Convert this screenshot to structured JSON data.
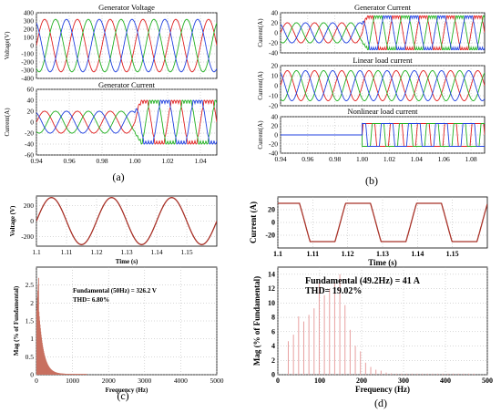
{
  "chart_data": [
    {
      "id": "a-top",
      "type": "line",
      "title": "Generator Voltage",
      "xlabel": "",
      "ylabel": "Voltage(V)",
      "xlim": [
        0.94,
        1.05
      ],
      "ylim": [
        -400,
        400
      ],
      "yticks": [
        400,
        300,
        200,
        100,
        0,
        -100,
        -200,
        -300,
        -400
      ],
      "xticks": [],
      "grid": true,
      "signal": {
        "kind": "three-phase-sine",
        "amplitude": 320,
        "frequency_hz": 50,
        "phase_colors": [
          "#e02020",
          "#20b020",
          "#2040e0"
        ]
      }
    },
    {
      "id": "a-bottom",
      "type": "line",
      "title": "Generator Current",
      "xlabel": "",
      "ylabel": "Current(A)",
      "xlim": [
        0.94,
        1.05
      ],
      "ylim": [
        -60,
        60
      ],
      "yticks": [
        60,
        40,
        20,
        0,
        -20,
        -40,
        -60
      ],
      "xticks": [
        "0.94",
        "0.96",
        "0.98",
        "1.00",
        "1.02",
        "1.04"
      ],
      "grid": true,
      "signal": {
        "kind": "three-phase-step",
        "amplitude_before": 20,
        "amplitude_after": 40,
        "step_time": 1.0,
        "frequency_hz": 50,
        "phase_colors": [
          "#e02020",
          "#20b020",
          "#2040e0"
        ]
      }
    },
    {
      "id": "b-1",
      "type": "line",
      "title": "Generator Current",
      "xlabel": "",
      "ylabel": "Current(A)",
      "xlim": [
        0.94,
        1.09
      ],
      "ylim": [
        -40,
        40
      ],
      "yticks": [
        40,
        20,
        0,
        -20,
        -40
      ],
      "xticks": [],
      "grid": true,
      "signal": {
        "kind": "three-phase-step",
        "amplitude_before": 20,
        "amplitude_after": 34,
        "step_time": 1.0,
        "frequency_hz": 50,
        "phase_colors": [
          "#e02020",
          "#20b020",
          "#2040e0"
        ]
      }
    },
    {
      "id": "b-2",
      "type": "line",
      "title": "Linear load current",
      "xlabel": "",
      "ylabel": "Current(A)",
      "xlim": [
        0.94,
        1.09
      ],
      "ylim": [
        -20,
        20
      ],
      "yticks": [
        20,
        10,
        0,
        -10,
        -20
      ],
      "xticks": [],
      "grid": true,
      "signal": {
        "kind": "three-phase-sine",
        "amplitude": 15,
        "frequency_hz": 50,
        "phase_colors": [
          "#e02020",
          "#20b020",
          "#2040e0"
        ]
      }
    },
    {
      "id": "b-3",
      "type": "line",
      "title": "Nonlinear load current",
      "xlabel": "",
      "ylabel": "Current(A)",
      "xlim": [
        0.94,
        1.09
      ],
      "ylim": [
        -40,
        40
      ],
      "yticks": [
        40,
        20,
        0,
        -20,
        -40
      ],
      "xticks": [
        "0.94",
        "0.96",
        "0.98",
        "1.00",
        "1.02",
        "1.04",
        "1.06",
        "1.08"
      ],
      "grid": true,
      "signal": {
        "kind": "three-phase-square",
        "amplitude": 25,
        "start_time": 1.0,
        "frequency_hz": 50,
        "phase_colors": [
          "#e02020",
          "#20b020",
          "#2040e0"
        ]
      }
    },
    {
      "id": "c-top",
      "type": "line",
      "title": "",
      "xlabel": "Time (s)",
      "ylabel": "Voltage (V)",
      "xlim": [
        1.1,
        1.16
      ],
      "ylim": [
        -320,
        320
      ],
      "yticks": [
        200,
        0,
        -200
      ],
      "xticks": [
        "1.1",
        "1.11",
        "1.12",
        "1.13",
        "1.14",
        "1.15"
      ],
      "grid": true,
      "signal": {
        "kind": "sine",
        "amplitude": 300,
        "frequency_hz": 50,
        "color": "#a83228"
      }
    },
    {
      "id": "c-bottom",
      "type": "bar",
      "title": "",
      "xlabel": "Frequency (Hz)",
      "ylabel": "Mag (% of Fundamental)",
      "xlim": [
        0,
        5000
      ],
      "ylim": [
        0,
        3
      ],
      "yticks": [
        "0",
        "0.5",
        "1",
        "1.5",
        "2",
        "2.5"
      ],
      "xticks": [
        "0",
        "1000",
        "2000",
        "3000",
        "4000",
        "5000"
      ],
      "annotation": [
        "Fundamental (50Hz) = 326.2 V",
        "THD= 6.80%"
      ],
      "grid": true,
      "signal": {
        "kind": "decaying-spectrum",
        "peak": 2.7,
        "color": "#c87060"
      }
    },
    {
      "id": "d-top",
      "type": "line",
      "title": "",
      "xlabel": "Time (s)",
      "ylabel": "Current (A)",
      "xlim": [
        1.1,
        1.16
      ],
      "ylim": [
        -40,
        40
      ],
      "yticks": [
        20,
        0,
        -20
      ],
      "xticks": [
        "1.1",
        "1.11",
        "1.12",
        "1.13",
        "1.14",
        "1.15"
      ],
      "grid": true,
      "signal": {
        "kind": "trapezoid",
        "amplitude": 30,
        "frequency_hz": 49.2,
        "color": "#a83228"
      }
    },
    {
      "id": "d-bottom",
      "type": "bar",
      "title": "",
      "xlabel": "Frequency (Hz)",
      "ylabel": "Mag (% of Fundamental)",
      "xlim": [
        0,
        500
      ],
      "ylim": [
        0,
        15
      ],
      "yticks": [
        "0",
        "2",
        "4",
        "6",
        "8",
        "10",
        "12",
        "14"
      ],
      "xticks": [
        "0",
        "100",
        "200",
        "300",
        "400",
        "500"
      ],
      "annotation": [
        "Fundamental (49.2Hz) = 41 A",
        "THD= 19.02%"
      ],
      "grid": true,
      "signal": {
        "kind": "harmonic-spectrum",
        "peak": 14,
        "color": "#e8a0a0"
      }
    }
  ],
  "panel_labels": [
    "(a)",
    "(b)",
    "(c)",
    "(d)"
  ]
}
